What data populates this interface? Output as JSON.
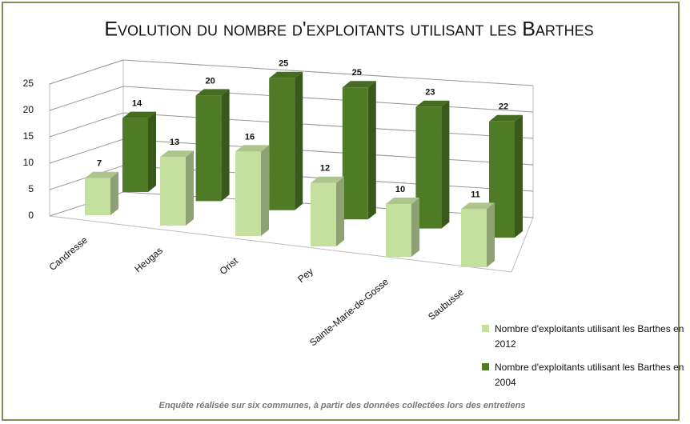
{
  "chart_data": {
    "type": "bar3d",
    "title": "Evolution du nombre d'exploitants utilisant les Barthes",
    "categories": [
      "Candresse",
      "Heugas",
      "Orist",
      "Pey",
      "Sainte-Marie-de-Gosse",
      "Saubusse"
    ],
    "series": [
      {
        "name": "Nombre d'exploitants utilisant les Barthes en 2012",
        "color": "#c5df9f",
        "values": [
          7,
          13,
          16,
          12,
          10,
          11
        ]
      },
      {
        "name": "Nombre d'exploitants utilisant les Barthes en 2004",
        "color": "#4f7b27",
        "values": [
          14,
          20,
          25,
          25,
          23,
          22
        ]
      }
    ],
    "ylim": [
      0,
      25
    ],
    "yticks": [
      0,
      5,
      10,
      15,
      20,
      25
    ],
    "grid": true,
    "legend": "right",
    "footnote": "Enquête réalisée sur six communes, à partir des données collectées lors des entretiens"
  }
}
